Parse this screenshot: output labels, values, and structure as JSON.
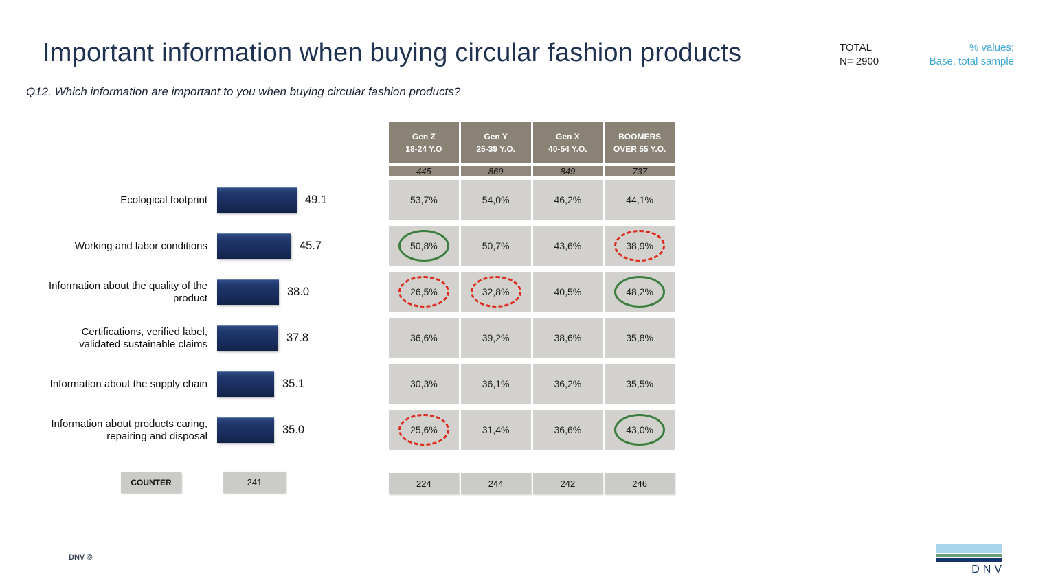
{
  "slide": {
    "title": "Important information when buying circular fashion products",
    "question": "Q12. Which information are important to you when buying circular fashion products?",
    "total_label": "TOTAL",
    "total_n": "N= 2900",
    "values_note_line1": "% values;",
    "values_note_line2": "Base, total sample",
    "footer_left": "DNV ©",
    "logo_text": "DNV"
  },
  "colors": {
    "title_navy": "#1e3151",
    "accent_blue": "#3ea6d4",
    "bar_navy": "#1b3161",
    "header_taupe": "#8a8275",
    "base_row_taupe": "#91897b",
    "cell_gray": "#d2d1cd",
    "counter_gray": "#cbcbc7",
    "circle_green": "#3a7d3f",
    "circle_red": "#dd2a1e",
    "logo_light_blue": "#a7d6ec",
    "logo_green": "#6a9e78",
    "logo_navy": "#16356b"
  },
  "chart_data": [
    {
      "type": "bar",
      "orientation": "horizontal",
      "title": "Important information when buying circular fashion products (% values, total sample)",
      "categories": [
        "Ecological footprint",
        "Working and labor conditions",
        "Information about the quality of the product",
        "Certifications, verified label, validated sustainable claims",
        "Information about the supply chain",
        "Information about products caring, repairing and disposal"
      ],
      "values": [
        49.1,
        45.7,
        38.0,
        37.8,
        35.1,
        35.0
      ],
      "value_labels": [
        "49.1",
        "45.7",
        "38.0",
        "37.8",
        "35.1",
        "35.0"
      ],
      "xlim": [
        0,
        55
      ],
      "grid": false,
      "legend": false,
      "counter_label": "COUNTER",
      "counter_value": "241"
    },
    {
      "type": "table",
      "columns": [
        {
          "line1": "Gen Z",
          "line2": "18-24 Y.O",
          "base": "445",
          "counter": "224"
        },
        {
          "line1": "Gen Y",
          "line2": "25-39 Y.O.",
          "base": "869",
          "counter": "244"
        },
        {
          "line1": "Gen X",
          "line2": "40-54 Y.O.",
          "base": "849",
          "counter": "242"
        },
        {
          "line1": "BOOMERS",
          "line2": "OVER 55 Y.O.",
          "base": "737",
          "counter": "246"
        }
      ],
      "rows": [
        {
          "label": "Ecological footprint",
          "cells": [
            {
              "value": "53,7%"
            },
            {
              "value": "54,0%"
            },
            {
              "value": "46,2%"
            },
            {
              "value": "44,1%"
            }
          ]
        },
        {
          "label": "Working and labor conditions",
          "cells": [
            {
              "value": "50,8%",
              "circle": "green-solid"
            },
            {
              "value": "50,7%"
            },
            {
              "value": "43,6%"
            },
            {
              "value": "38,9%",
              "circle": "red-dashed"
            }
          ]
        },
        {
          "label": "Information about the quality of the product",
          "cells": [
            {
              "value": "26,5%",
              "circle": "red-dashed"
            },
            {
              "value": "32,8%",
              "circle": "red-dashed"
            },
            {
              "value": "40,5%"
            },
            {
              "value": "48,2%",
              "circle": "green-solid"
            }
          ]
        },
        {
          "label": "Certifications, verified label, validated sustainable claims",
          "cells": [
            {
              "value": "36,6%"
            },
            {
              "value": "39,2%"
            },
            {
              "value": "38,6%"
            },
            {
              "value": "35,8%"
            }
          ]
        },
        {
          "label": "Information about the supply chain",
          "cells": [
            {
              "value": "30,3%"
            },
            {
              "value": "36,1%"
            },
            {
              "value": "36,2%"
            },
            {
              "value": "35,5%"
            }
          ]
        },
        {
          "label": "Information about products caring, repairing and disposal",
          "cells": [
            {
              "value": "25,6%",
              "circle": "red-dashed"
            },
            {
              "value": "31,4%"
            },
            {
              "value": "36,6%"
            },
            {
              "value": "43,0%",
              "circle": "green-solid"
            }
          ]
        }
      ]
    }
  ]
}
